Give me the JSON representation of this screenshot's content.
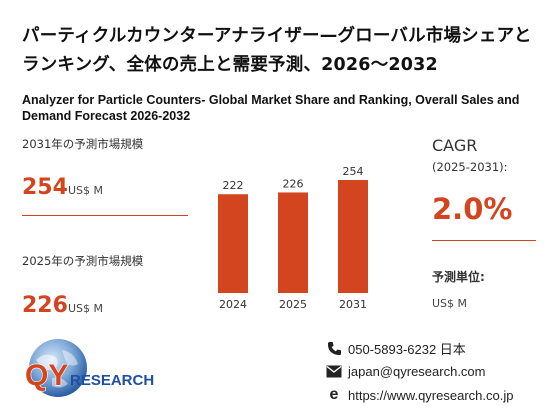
{
  "header": {
    "title_ja": "パーティクルカウンターアナライザー—グローバル市場シェアとランキング、全体の売上と需要予測、2026～2032",
    "title_en": "Analyzer for Particle Counters- Global Market Share and Ranking, Overall Sales and Demand Forecast 2026-2032"
  },
  "stats": {
    "market_2031_label": "2031年の予測市場規模",
    "market_2031_value": "254",
    "market_2031_unit": "US$ M",
    "market_2025_label": "2025年の予測市場規模",
    "market_2025_value": "226",
    "market_2025_unit": "US$ M"
  },
  "cagr": {
    "label": "CAGR",
    "period": "(2025-2031):",
    "value": "2.0%",
    "forecast_unit_label": "予測単位:",
    "forecast_unit": "US$ M"
  },
  "chart_data": {
    "type": "bar",
    "categories": [
      "2024",
      "2025",
      "2031"
    ],
    "values": [
      222,
      226,
      254
    ],
    "title": "",
    "xlabel": "",
    "ylabel": "",
    "ylim": [
      0,
      254
    ],
    "grid": false,
    "bar_color": "#d2451e"
  },
  "logo": {
    "brand_q": "QY",
    "brand_rest": "RESEARCH"
  },
  "contact": {
    "phone": "050-5893-6232 日本",
    "email": "japan@qyresearch.com",
    "website": "https://www.qyresearch.co.jp"
  },
  "colors": {
    "accent": "#d2451e",
    "logo_blue": "#1f4fa3"
  }
}
